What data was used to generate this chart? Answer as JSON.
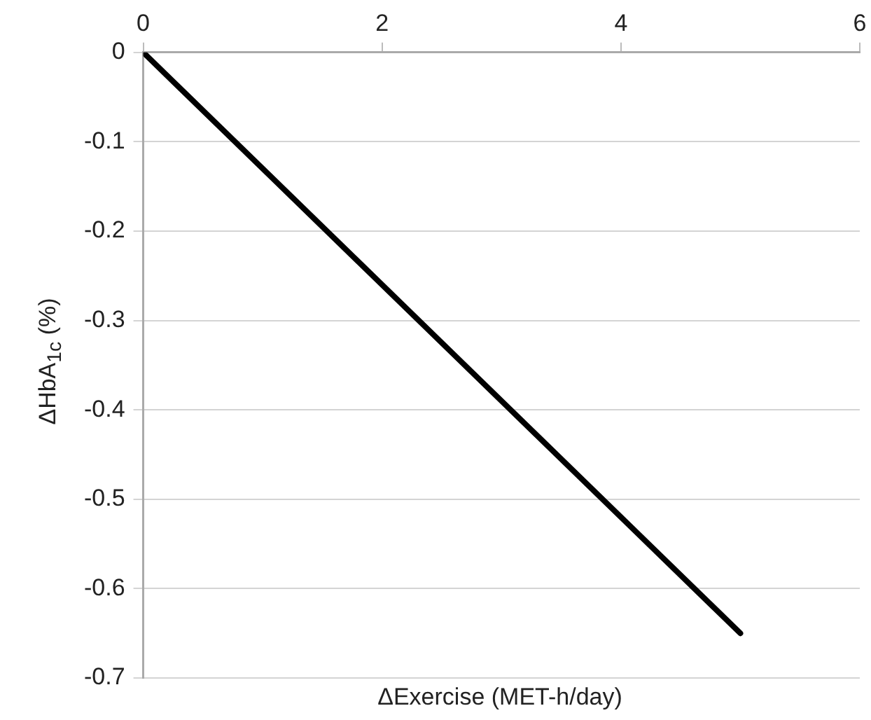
{
  "chart_data": {
    "type": "line",
    "xlabel": "ΔExercise (MET-h/day)",
    "ylabel": "ΔHbA$_{1c}$ (%)",
    "x": [
      0,
      5
    ],
    "series": [
      {
        "color": "#000000",
        "values": [
          0,
          -0.65
        ]
      }
    ],
    "xlim": [
      0,
      6
    ],
    "xticks": [
      0,
      2,
      4,
      6
    ],
    "ylim": [
      -0.7,
      0
    ],
    "yticks": [
      0,
      -0.1,
      -0.2,
      -0.3,
      -0.4,
      -0.5,
      -0.6,
      -0.7
    ],
    "grid": "y",
    "legend": false,
    "marker": "none",
    "line_style": "solid"
  }
}
